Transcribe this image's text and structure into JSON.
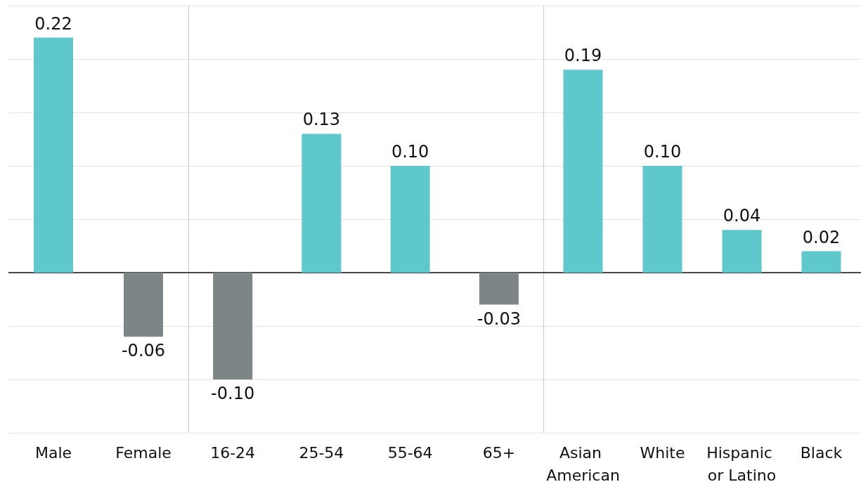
{
  "chart_data": [
    {
      "type": "bar",
      "categories": [
        "Male",
        "Female"
      ],
      "values": [
        0.22,
        -0.06
      ],
      "value_labels": [
        "0.22",
        "-0.06"
      ],
      "colors": [
        "#5ec8cc",
        "#7d8586"
      ],
      "ylim": [
        -0.15,
        0.25
      ],
      "yticks": [
        {
          "value": -0.15,
          "label": null
        },
        {
          "value": -0.1,
          "label": null
        },
        {
          "value": -0.05,
          "label": null
        },
        {
          "value": 0,
          "label": null
        },
        {
          "value": 0.05,
          "label": null
        },
        {
          "value": 0.1,
          "label": null
        },
        {
          "value": 0.15,
          "label": null
        },
        {
          "value": 0.2,
          "label": null
        },
        {
          "value": 0.25,
          "label": null
        }
      ],
      "grid": "y",
      "tick_labels": "x"
    },
    {
      "type": "bar",
      "categories": [
        "16-24",
        "25-54",
        "55-64",
        "65+"
      ],
      "values": [
        -0.1,
        0.13,
        0.1,
        -0.03
      ],
      "value_labels": [
        "-0.10",
        "0.13",
        "0.10",
        "-0.03"
      ],
      "colors": [
        "#7d8586",
        "#5ec8cc",
        "#5ec8cc",
        "#7d8586"
      ],
      "ylim": [
        -0.15,
        0.25
      ],
      "yticks": [
        {
          "value": -0.15,
          "label": null
        },
        {
          "value": -0.1,
          "label": null
        },
        {
          "value": -0.05,
          "label": null
        },
        {
          "value": 0,
          "label": null
        },
        {
          "value": 0.05,
          "label": null
        },
        {
          "value": 0.1,
          "label": null
        },
        {
          "value": 0.15,
          "label": null
        },
        {
          "value": 0.2,
          "label": null
        },
        {
          "value": 0.25,
          "label": null
        }
      ],
      "grid": "y",
      "tick_labels": "x"
    },
    {
      "type": "bar",
      "categories": [
        "Asian American",
        "White",
        "Hispanic or Latino",
        "Black"
      ],
      "values": [
        0.19,
        0.1,
        0.04,
        0.02
      ],
      "value_labels": [
        "0.19",
        "0.10",
        "0.04",
        "0.02"
      ],
      "colors": [
        "#5ec8cc",
        "#5ec8cc",
        "#5ec8cc",
        "#5ec8cc"
      ],
      "ylim": [
        -0.15,
        0.25
      ],
      "yticks": [
        {
          "value": -0.15,
          "label": null
        },
        {
          "value": -0.1,
          "label": null
        },
        {
          "value": -0.05,
          "label": null
        },
        {
          "value": 0,
          "label": null
        },
        {
          "value": 0.05,
          "label": null
        },
        {
          "value": 0.1,
          "label": null
        },
        {
          "value": 0.15,
          "label": null
        },
        {
          "value": 0.2,
          "label": null
        },
        {
          "value": 0.25,
          "label": null
        }
      ],
      "grid": "y",
      "tick_labels": "x"
    }
  ]
}
